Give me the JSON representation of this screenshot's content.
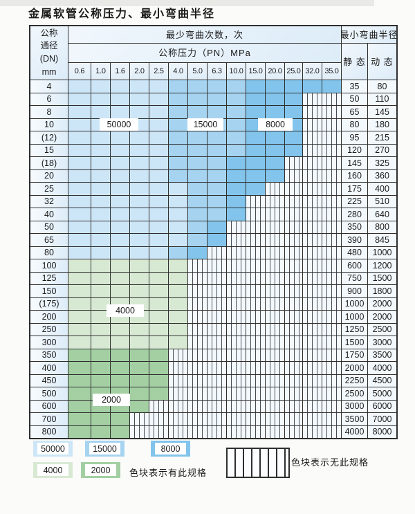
{
  "title": "金属软管公称压力、最小弯曲半径",
  "table": {
    "header": {
      "dn_lines": [
        "公称",
        "通径",
        "(DN)",
        "mm"
      ],
      "cycles": "最少弯曲次数，次",
      "pressure": "公称压力（PN）MPa",
      "radius": "最小弯曲半径",
      "static": "静 态",
      "dynamic": "动 态",
      "pressure_values": [
        "0.6",
        "1.0",
        "1.6",
        "2.0",
        "2.5",
        "4.0",
        "5.0",
        "6.3",
        "10.0",
        "15.0",
        "20.0",
        "25.0",
        "32.0",
        "35.0"
      ]
    },
    "rows": [
      {
        "dn": "4",
        "static": "35",
        "dynamic": "80",
        "spec_spans": [
          {
            "cycles": "50000",
            "through": "2.5"
          },
          {
            "cycles": "15000",
            "through": "10.0"
          },
          {
            "cycles": "8000",
            "through": "35.0"
          }
        ]
      },
      {
        "dn": "6",
        "static": "50",
        "dynamic": "110",
        "spec_spans": [
          {
            "cycles": "50000",
            "through": "2.5"
          },
          {
            "cycles": "15000",
            "through": "10.0"
          },
          {
            "cycles": "8000",
            "through": "25.0"
          }
        ]
      },
      {
        "dn": "8",
        "static": "65",
        "dynamic": "145",
        "spec_spans": [
          {
            "cycles": "50000",
            "through": "2.5"
          },
          {
            "cycles": "15000",
            "through": "10.0"
          },
          {
            "cycles": "8000",
            "through": "25.0"
          }
        ]
      },
      {
        "dn": "10",
        "static": "80",
        "dynamic": "180",
        "spec_spans": [
          {
            "cycles": "50000",
            "through": "2.5"
          },
          {
            "cycles": "15000",
            "through": "10.0"
          },
          {
            "cycles": "8000",
            "through": "25.0"
          }
        ]
      },
      {
        "dn": "(12)",
        "static": "95",
        "dynamic": "215",
        "spec_spans": [
          {
            "cycles": "50000",
            "through": "2.5"
          },
          {
            "cycles": "15000",
            "through": "10.0"
          },
          {
            "cycles": "8000",
            "through": "25.0"
          }
        ]
      },
      {
        "dn": "15",
        "static": "120",
        "dynamic": "270",
        "spec_spans": [
          {
            "cycles": "50000",
            "through": "2.5"
          },
          {
            "cycles": "15000",
            "through": "10.0"
          },
          {
            "cycles": "8000",
            "through": "25.0"
          }
        ]
      },
      {
        "dn": "(18)",
        "static": "145",
        "dynamic": "325",
        "spec_spans": [
          {
            "cycles": "50000",
            "through": "2.5"
          },
          {
            "cycles": "15000",
            "through": "6.3"
          },
          {
            "cycles": "8000",
            "through": "20.0"
          }
        ]
      },
      {
        "dn": "20",
        "static": "160",
        "dynamic": "360",
        "spec_spans": [
          {
            "cycles": "50000",
            "through": "2.5"
          },
          {
            "cycles": "15000",
            "through": "6.3"
          },
          {
            "cycles": "8000",
            "through": "20.0"
          }
        ]
      },
      {
        "dn": "25",
        "static": "175",
        "dynamic": "400",
        "spec_spans": [
          {
            "cycles": "50000",
            "through": "4.0"
          },
          {
            "cycles": "15000",
            "through": "6.3"
          },
          {
            "cycles": "8000",
            "through": "15.0"
          }
        ]
      },
      {
        "dn": "32",
        "static": "225",
        "dynamic": "510",
        "spec_spans": [
          {
            "cycles": "50000",
            "through": "4.0"
          },
          {
            "cycles": "15000",
            "through": "6.3"
          },
          {
            "cycles": "8000",
            "through": "10.0"
          }
        ]
      },
      {
        "dn": "40",
        "static": "280",
        "dynamic": "640",
        "spec_spans": [
          {
            "cycles": "50000",
            "through": "4.0"
          },
          {
            "cycles": "15000",
            "through": "6.3"
          },
          {
            "cycles": "8000",
            "through": "10.0"
          }
        ]
      },
      {
        "dn": "50",
        "static": "350",
        "dynamic": "800",
        "spec_spans": [
          {
            "cycles": "50000",
            "through": "4.0"
          },
          {
            "cycles": "15000",
            "through": "5.0"
          },
          {
            "cycles": "8000",
            "through": "6.3"
          }
        ]
      },
      {
        "dn": "65",
        "static": "390",
        "dynamic": "845",
        "spec_spans": [
          {
            "cycles": "50000",
            "through": "4.0"
          },
          {
            "cycles": "15000",
            "through": "5.0"
          },
          {
            "cycles": "8000",
            "through": "6.3"
          }
        ]
      },
      {
        "dn": "80",
        "static": "480",
        "dynamic": "1000",
        "spec_spans": [
          {
            "cycles": "50000",
            "through": "2.5"
          },
          {
            "cycles": "15000",
            "through": "4.0"
          },
          {
            "cycles": "8000",
            "through": "5.0"
          }
        ]
      },
      {
        "dn": "100",
        "static": "600",
        "dynamic": "1200",
        "spec_spans": [
          {
            "cycles": "4000",
            "through": "4.0"
          }
        ]
      },
      {
        "dn": "125",
        "static": "750",
        "dynamic": "1500",
        "spec_spans": [
          {
            "cycles": "4000",
            "through": "4.0"
          }
        ]
      },
      {
        "dn": "150",
        "static": "900",
        "dynamic": "1800",
        "spec_spans": [
          {
            "cycles": "4000",
            "through": "4.0"
          }
        ]
      },
      {
        "dn": "(175)",
        "static": "1000",
        "dynamic": "2000",
        "spec_spans": [
          {
            "cycles": "4000",
            "through": "4.0"
          }
        ]
      },
      {
        "dn": "200",
        "static": "1000",
        "dynamic": "2000",
        "spec_spans": [
          {
            "cycles": "4000",
            "through": "4.0"
          }
        ]
      },
      {
        "dn": "250",
        "static": "1250",
        "dynamic": "2500",
        "spec_spans": [
          {
            "cycles": "4000",
            "through": "4.0"
          }
        ]
      },
      {
        "dn": "300",
        "static": "1500",
        "dynamic": "3000",
        "spec_spans": [
          {
            "cycles": "4000",
            "through": "4.0"
          }
        ]
      },
      {
        "dn": "350",
        "static": "1750",
        "dynamic": "3500",
        "spec_spans": [
          {
            "cycles": "2000",
            "through": "2.5"
          }
        ]
      },
      {
        "dn": "400",
        "static": "2000",
        "dynamic": "4000",
        "spec_spans": [
          {
            "cycles": "2000",
            "through": "2.5"
          }
        ]
      },
      {
        "dn": "450",
        "static": "2250",
        "dynamic": "4500",
        "spec_spans": [
          {
            "cycles": "2000",
            "through": "2.5"
          }
        ]
      },
      {
        "dn": "500",
        "static": "2500",
        "dynamic": "5000",
        "spec_spans": [
          {
            "cycles": "2000",
            "through": "2.5"
          }
        ]
      },
      {
        "dn": "600",
        "static": "3000",
        "dynamic": "6000",
        "spec_spans": [
          {
            "cycles": "2000",
            "through": "2.0"
          }
        ]
      },
      {
        "dn": "700",
        "static": "3500",
        "dynamic": "7000",
        "spec_spans": [
          {
            "cycles": "2000",
            "through": "1.6"
          }
        ]
      },
      {
        "dn": "800",
        "static": "4000",
        "dynamic": "8000",
        "spec_spans": [
          {
            "cycles": "2000",
            "through": "1.6"
          }
        ]
      }
    ]
  },
  "spec_levels": [
    {
      "cycles": "50000",
      "color": "#cde6f7"
    },
    {
      "cycles": "15000",
      "color": "#a6d4f0"
    },
    {
      "cycles": "8000",
      "color": "#82c4eb"
    },
    {
      "cycles": "4000",
      "color": "#d8e9d3"
    },
    {
      "cycles": "2000",
      "color": "#a3cfa3"
    }
  ],
  "legend": {
    "has_spec_text": "色块表示有此规格",
    "no_spec_text": "色块表示无此规格"
  },
  "colors": {
    "grid_line": "#2e2e2e",
    "stripe_line": "#454b52",
    "stripe_bg": "#f4f9fd",
    "header_bg": "#e6eff8"
  }
}
